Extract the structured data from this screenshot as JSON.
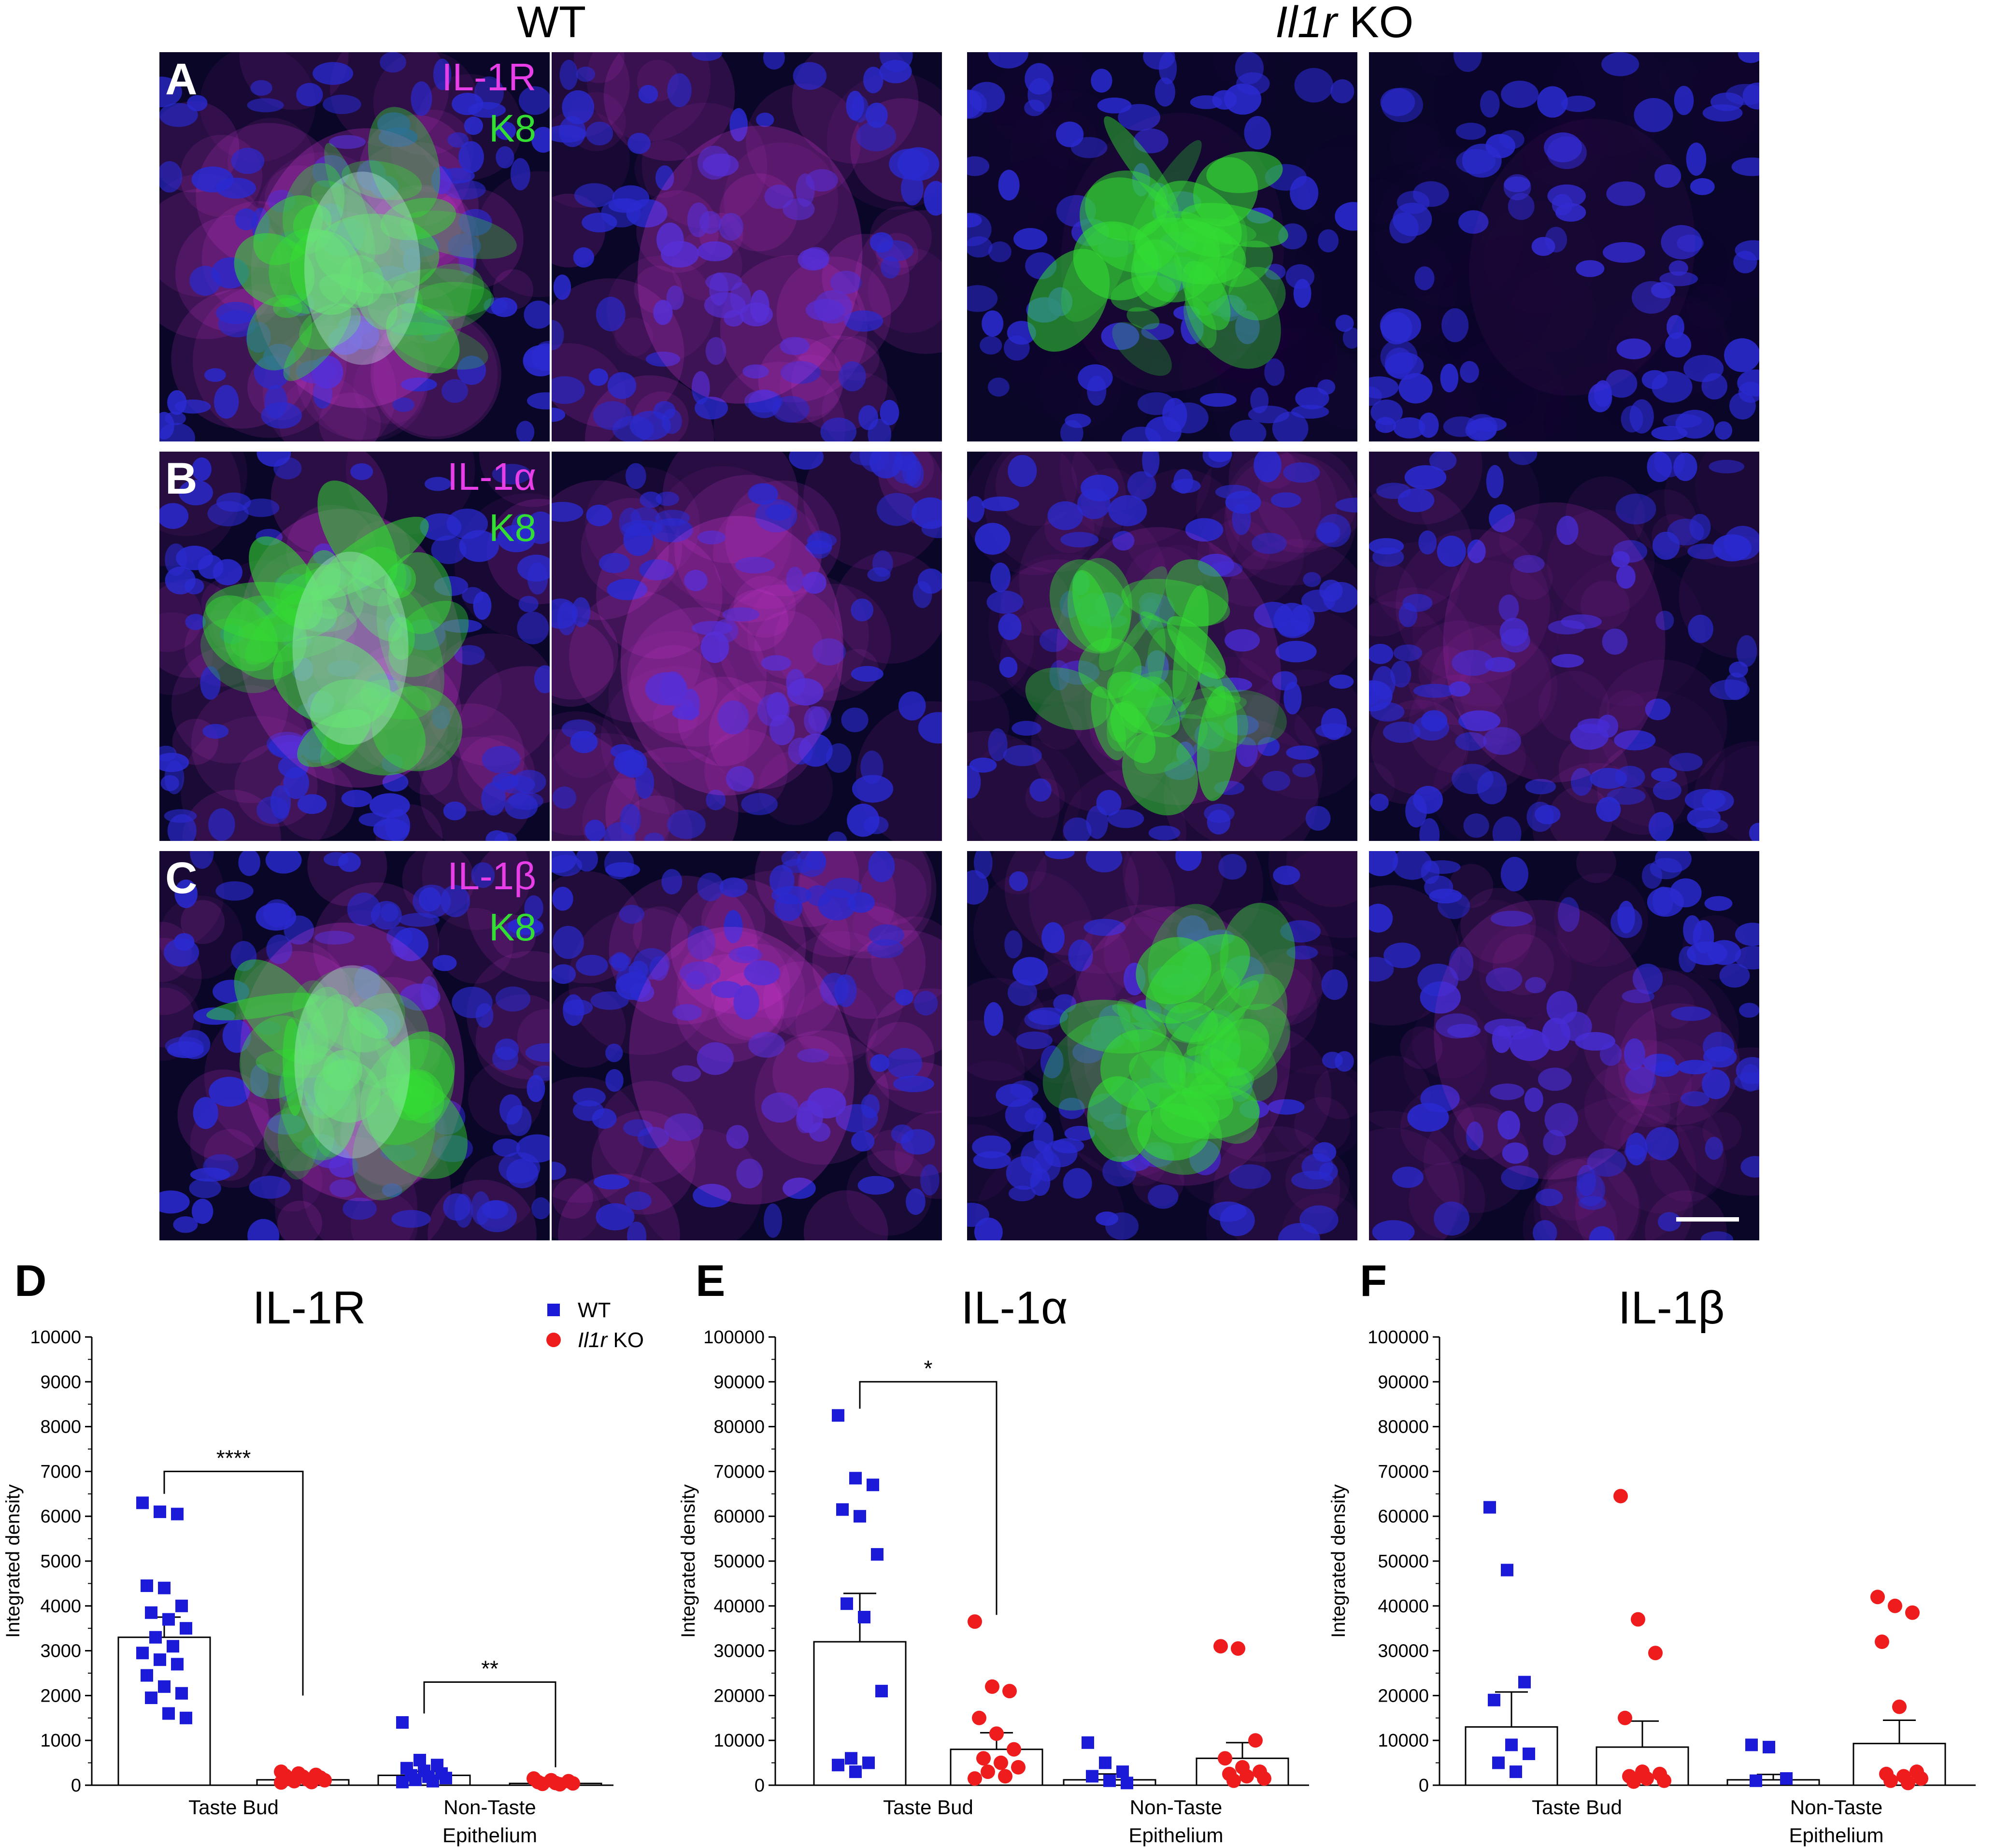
{
  "headers": {
    "wt": "WT",
    "ko_italic": "Il1r",
    "ko_rest": " KO"
  },
  "image_panels": [
    {
      "row": "A",
      "magenta_label": "IL-1R",
      "green_label": "K8"
    },
    {
      "row": "B",
      "magenta_label": "IL-1α",
      "green_label": "K8"
    },
    {
      "row": "C",
      "magenta_label": "IL-1β",
      "green_label": "K8"
    }
  ],
  "colors": {
    "wt": "#1a1ad8",
    "ko": "#ee1c1c",
    "magenta": "#e83ee8",
    "green": "#33dd33",
    "nuclei": "#2a2ad0"
  },
  "chart_data": [
    {
      "panel": "D",
      "type": "bar",
      "title": "IL-1R",
      "ylabel": "Integrated density",
      "ylim": [
        0,
        10000
      ],
      "yticks": [
        0,
        1000,
        2000,
        3000,
        4000,
        5000,
        6000,
        7000,
        8000,
        9000,
        10000
      ],
      "yticklabels": [
        "0",
        "1000",
        "2000",
        "3000",
        "4000",
        "5000",
        "6000",
        "7000",
        "8000",
        "9000",
        "10000"
      ],
      "groups": [
        "Taste Bud",
        "Non-Taste\nEpithelium"
      ],
      "legend": [
        {
          "name": "WT",
          "italic": "",
          "color": "#1a1ad8",
          "marker": "square"
        },
        {
          "name": " KO",
          "italic": "Il1r",
          "color": "#ee1c1c",
          "marker": "circle"
        }
      ],
      "legend_position": "top-right",
      "bars": [
        {
          "group": 0,
          "series": "WT",
          "mean": 3300,
          "sem": 450,
          "points": [
            6300,
            6100,
            6050,
            4450,
            4400,
            4000,
            3850,
            3700,
            3500,
            3300,
            3100,
            2950,
            2800,
            2700,
            2450,
            2200,
            2050,
            1950,
            1600,
            1500
          ]
        },
        {
          "group": 0,
          "series": "KO",
          "mean": 120,
          "sem": 25,
          "points": [
            300,
            260,
            230,
            210,
            190,
            170,
            150,
            130,
            110,
            90,
            70,
            60
          ]
        },
        {
          "group": 1,
          "series": "WT",
          "mean": 220,
          "sem": 90,
          "points": [
            1400,
            560,
            450,
            380,
            320,
            260,
            220,
            190,
            160,
            120,
            90,
            70
          ]
        },
        {
          "group": 1,
          "series": "KO",
          "mean": 40,
          "sem": 10,
          "points": [
            150,
            110,
            90,
            70,
            50,
            40,
            30,
            20
          ]
        }
      ],
      "significance": [
        {
          "label": "****",
          "from": 0,
          "to": 1,
          "y": 7000,
          "drop_left": 6500,
          "drop_right": 2000
        },
        {
          "label": "**",
          "from": 2,
          "to": 3,
          "y": 2300,
          "drop_left": 1600,
          "drop_right": 400
        }
      ]
    },
    {
      "panel": "E",
      "type": "bar",
      "title": "IL-1α",
      "ylabel": "Integrated density",
      "ylim": [
        0,
        100000
      ],
      "yticks": [
        0,
        10000,
        20000,
        30000,
        40000,
        50000,
        60000,
        70000,
        80000,
        90000,
        100000
      ],
      "yticklabels": [
        "0",
        "10000",
        "20000",
        "30000",
        "40000",
        "50000",
        "60000",
        "70000",
        "80000",
        "90000",
        "100000"
      ],
      "groups": [
        "Taste Bud",
        "Non-Taste\nEpithelium"
      ],
      "bars": [
        {
          "group": 0,
          "series": "WT",
          "mean": 32000,
          "sem": 10800,
          "points": [
            82500,
            68500,
            67000,
            61500,
            60000,
            51500,
            40500,
            37500,
            21000,
            6000,
            5000,
            4500,
            3000
          ]
        },
        {
          "group": 0,
          "series": "KO",
          "mean": 8000,
          "sem": 3700,
          "points": [
            36500,
            22000,
            21000,
            15000,
            11500,
            8000,
            6000,
            5000,
            4000,
            3000,
            2000,
            1500
          ]
        },
        {
          "group": 1,
          "series": "WT",
          "mean": 1200,
          "sem": 1300,
          "points": [
            9500,
            5000,
            3000,
            2000,
            1000,
            500
          ]
        },
        {
          "group": 1,
          "series": "KO",
          "mean": 6000,
          "sem": 3500,
          "points": [
            31000,
            30500,
            10000,
            6000,
            4000,
            3000,
            2500,
            2000,
            1500,
            1000
          ]
        }
      ],
      "significance": [
        {
          "label": "*",
          "from": 0,
          "to": 1,
          "y": 90000,
          "drop_left": 84000,
          "drop_right": 38000
        }
      ]
    },
    {
      "panel": "F",
      "type": "bar",
      "title": "IL-1β",
      "ylabel": "Integrated density",
      "ylim": [
        0,
        100000
      ],
      "yticks": [
        0,
        10000,
        20000,
        30000,
        40000,
        50000,
        60000,
        70000,
        80000,
        90000,
        100000
      ],
      "yticklabels": [
        "0",
        "10000",
        "20000",
        "30000",
        "40000",
        "50000",
        "60000",
        "70000",
        "80000",
        "90000",
        "100000"
      ],
      "groups": [
        "Taste Bud",
        "Non-Taste\nEpithelium"
      ],
      "bars": [
        {
          "group": 0,
          "series": "WT",
          "mean": 13000,
          "sem": 7800,
          "points": [
            62000,
            48000,
            23000,
            19000,
            9000,
            7000,
            5000,
            3000
          ]
        },
        {
          "group": 0,
          "series": "KO",
          "mean": 8500,
          "sem": 5800,
          "points": [
            64500,
            37000,
            29500,
            15000,
            3000,
            2500,
            2000,
            1500,
            1000,
            800
          ]
        },
        {
          "group": 1,
          "series": "WT",
          "mean": 1200,
          "sem": 1200,
          "points": [
            9000,
            8500,
            1500,
            1000
          ]
        },
        {
          "group": 1,
          "series": "KO",
          "mean": 9300,
          "sem": 5200,
          "points": [
            42000,
            40000,
            38500,
            32000,
            17500,
            3000,
            2500,
            2000,
            1500,
            1000,
            500
          ]
        }
      ],
      "significance": []
    }
  ]
}
